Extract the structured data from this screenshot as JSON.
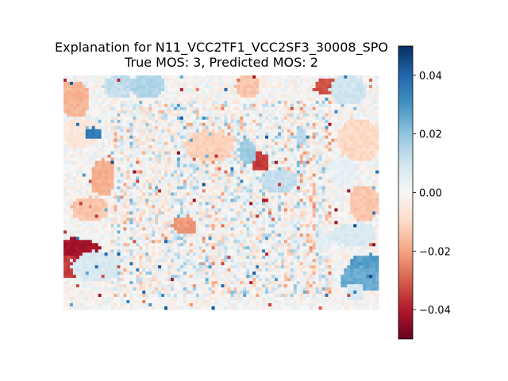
{
  "chart_data": {
    "type": "heatmap",
    "title": "Explanation for N11_VCC2TF1_VCC2SF3_30008_SPO",
    "subtitle": "True MOS: 3, Predicted MOS: 2",
    "colormap": "RdBu",
    "colorbar": {
      "range": [
        -0.05,
        0.05
      ],
      "ticks": [
        0.04,
        0.02,
        0.0,
        -0.02,
        -0.04
      ],
      "tick_labels": [
        "0.04",
        "0.02",
        "0.00",
        "−0.02",
        "−0.04"
      ]
    },
    "axes_visible": false
  }
}
